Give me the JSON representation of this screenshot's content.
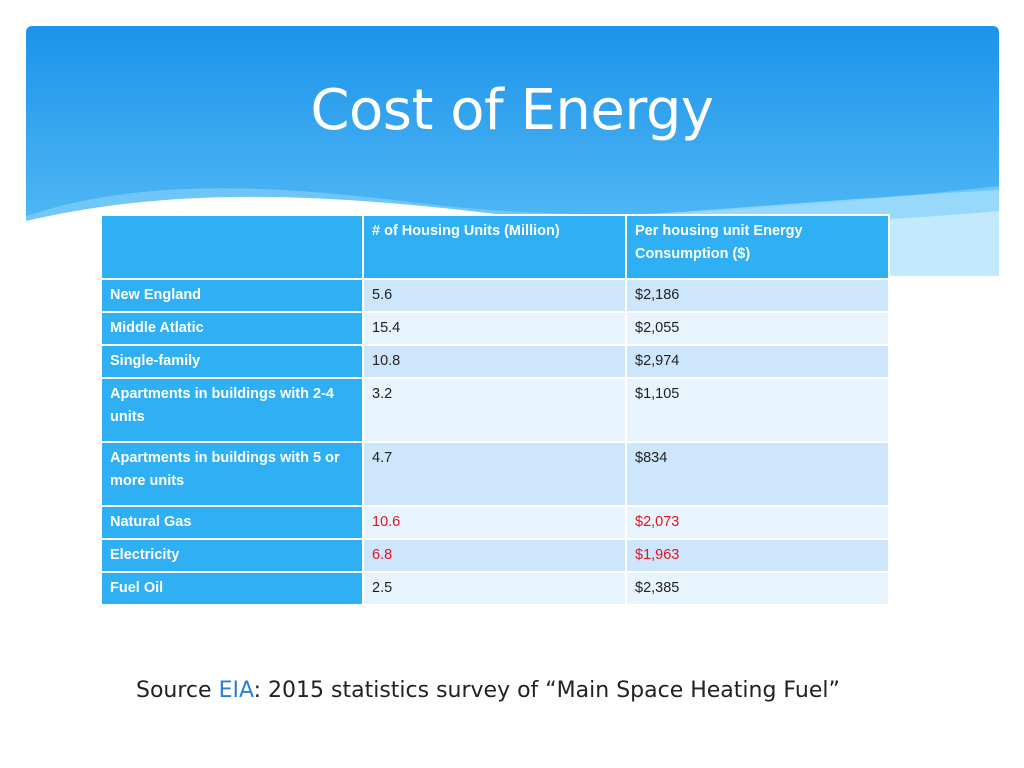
{
  "title": "Cost of Energy",
  "table": {
    "headers": [
      "",
      "# of Housing Units (Million)",
      "Per housing unit Energy Consumption ($)"
    ],
    "rows": [
      {
        "label": "New England",
        "units": "5.6",
        "cost": "$2,186"
      },
      {
        "label": "Middle Atlatic",
        "units": "15.4",
        "cost": "$2,055"
      },
      {
        "label": "Single-family",
        "units": "10.8",
        "cost": "$2,974"
      },
      {
        "label": "Apartments in buildings with 2-4 units",
        "units": "3.2",
        "cost": "$1,105"
      },
      {
        "label": "Apartments in buildings with 5 or more units",
        "units": "4.7",
        "cost": "$834"
      },
      {
        "label": "Natural Gas",
        "units": "10.6",
        "cost": "$2,073"
      },
      {
        "label": "Electricity",
        "units": "6.8",
        "cost": "$1,963"
      },
      {
        "label": "Fuel Oil",
        "units": "2.5",
        "cost": "$2,385"
      }
    ]
  },
  "source": {
    "prefix": "Source ",
    "link_text": "EIA",
    "suffix": ": 2015 statistics survey of “Main Space Heating Fuel”"
  },
  "colors": {
    "header_blue": "#2fb0f5",
    "row_light": "#e8f4fd",
    "row_mid": "#cde6fb",
    "highlight_red": "#e0141e",
    "link_blue": "#2a7fd4"
  }
}
